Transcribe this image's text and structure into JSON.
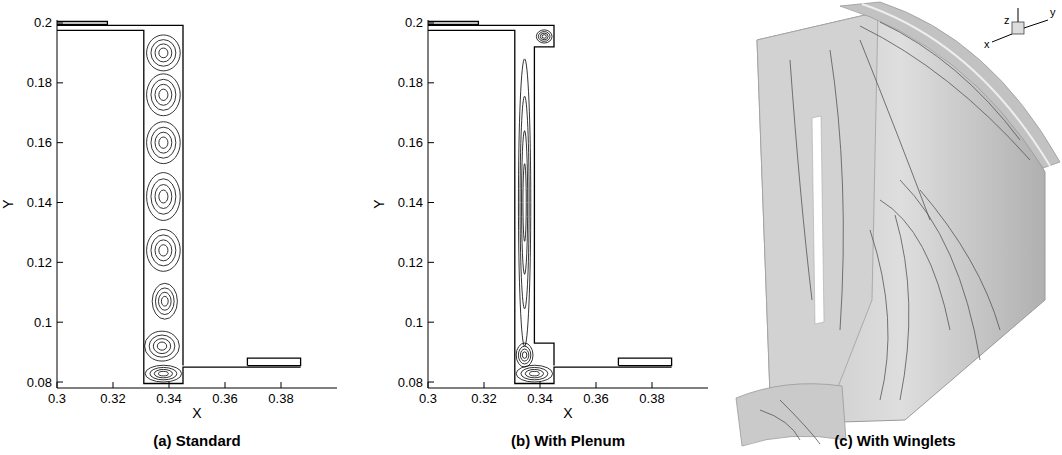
{
  "chart_data": [
    {
      "type": "streamline",
      "title": "(a) Standard",
      "xlabel": "X",
      "ylabel": "Y",
      "xlim": [
        0.3,
        0.4
      ],
      "ylim": [
        0.078,
        0.201
      ],
      "xticks": [
        0.3,
        0.32,
        0.34,
        0.36,
        0.38
      ],
      "yticks": [
        0.08,
        0.1,
        0.12,
        0.14,
        0.16,
        0.18,
        0.2
      ],
      "grid": false,
      "outlines": [
        {
          "x": [
            0.3,
            0.331,
            0.331,
            0.345,
            0.345,
            0.387
          ],
          "y": [
            0.1975,
            0.1975,
            0.0795,
            0.0795,
            0.085,
            0.085
          ]
        },
        {
          "x": [
            0.3,
            0.345,
            0.345
          ],
          "y": [
            0.1992,
            0.1992,
            0.0855
          ]
        },
        {
          "x": [
            0.368,
            0.387,
            0.387,
            0.368,
            0.368
          ],
          "y": [
            0.0855,
            0.0855,
            0.088,
            0.088,
            0.0855
          ]
        },
        {
          "x": [
            0.3,
            0.318,
            0.318,
            0.3
          ],
          "y": [
            0.1995,
            0.1995,
            0.2005,
            0.2005
          ]
        }
      ],
      "vortices": [
        {
          "x": 0.338,
          "y": 0.0828,
          "rx": 0.0065,
          "ry": 0.0028
        },
        {
          "x": 0.3375,
          "y": 0.092,
          "rx": 0.0062,
          "ry": 0.005
        },
        {
          "x": 0.3385,
          "y": 0.107,
          "rx": 0.0045,
          "ry": 0.006
        },
        {
          "x": 0.338,
          "y": 0.124,
          "rx": 0.006,
          "ry": 0.007
        },
        {
          "x": 0.338,
          "y": 0.142,
          "rx": 0.006,
          "ry": 0.008
        },
        {
          "x": 0.338,
          "y": 0.16,
          "rx": 0.006,
          "ry": 0.007
        },
        {
          "x": 0.338,
          "y": 0.176,
          "rx": 0.006,
          "ry": 0.007
        },
        {
          "x": 0.338,
          "y": 0.19,
          "rx": 0.006,
          "ry": 0.006
        }
      ]
    },
    {
      "type": "streamline",
      "title": "(b) With Plenum",
      "xlabel": "X",
      "ylabel": "Y",
      "xlim": [
        0.3,
        0.4
      ],
      "ylim": [
        0.078,
        0.201
      ],
      "xticks": [
        0.3,
        0.32,
        0.34,
        0.36,
        0.38
      ],
      "yticks": [
        0.08,
        0.1,
        0.12,
        0.14,
        0.16,
        0.18,
        0.2
      ],
      "grid": false,
      "outlines": [
        {
          "x": [
            0.3,
            0.331,
            0.331,
            0.345,
            0.345,
            0.387
          ],
          "y": [
            0.1975,
            0.1975,
            0.0795,
            0.0795,
            0.085,
            0.085
          ]
        },
        {
          "x": [
            0.3,
            0.345,
            0.345,
            0.338,
            0.338,
            0.345,
            0.345
          ],
          "y": [
            0.1992,
            0.1992,
            0.192,
            0.192,
            0.093,
            0.093,
            0.0855
          ]
        },
        {
          "x": [
            0.368,
            0.387,
            0.387,
            0.368,
            0.368
          ],
          "y": [
            0.0855,
            0.0855,
            0.088,
            0.088,
            0.0855
          ]
        },
        {
          "x": [
            0.3,
            0.318,
            0.318,
            0.3
          ],
          "y": [
            0.1995,
            0.1995,
            0.2005,
            0.2005
          ]
        }
      ],
      "vortices": [
        {
          "x": 0.338,
          "y": 0.0828,
          "rx": 0.0065,
          "ry": 0.0028
        },
        {
          "x": 0.3345,
          "y": 0.089,
          "rx": 0.003,
          "ry": 0.004
        },
        {
          "x": 0.3345,
          "y": 0.14,
          "rx": 0.0022,
          "ry": 0.048
        },
        {
          "x": 0.3415,
          "y": 0.1955,
          "rx": 0.0028,
          "ry": 0.0022
        }
      ]
    },
    {
      "type": "render",
      "title": "(c) With Winglets",
      "tick_labels": false,
      "triad": [
        "z",
        "x",
        "y"
      ]
    }
  ]
}
